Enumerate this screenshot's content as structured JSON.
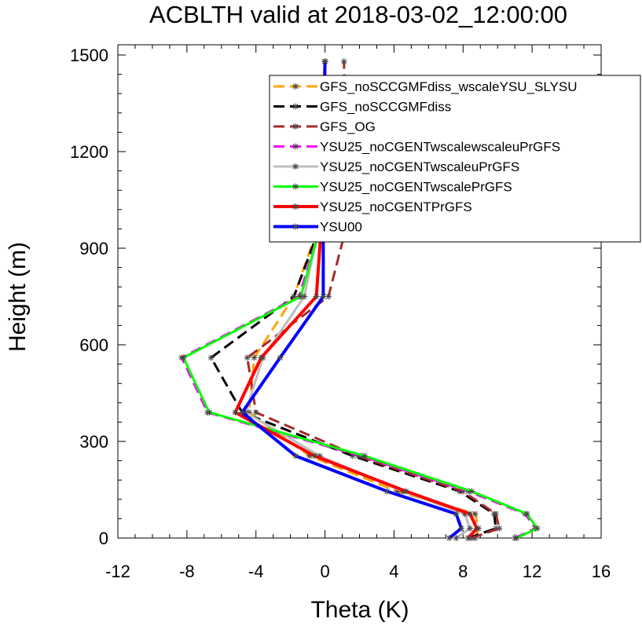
{
  "chart_data": {
    "type": "line",
    "title": "ACBLTH valid at 2018-03-02_12:00:00",
    "xlabel": "Theta (K)",
    "ylabel": "Height (m)",
    "xlim": [
      -12,
      16
    ],
    "ylim": [
      0,
      1500
    ],
    "x_ticks": [
      "-12",
      "-8",
      "-4",
      "0",
      "4",
      "8",
      "12",
      "16"
    ],
    "y_ticks": [
      "0",
      "300",
      "600",
      "900",
      "1200",
      "1500"
    ],
    "grid": false,
    "legend_position": "top-right",
    "series": [
      {
        "name": "GFS_noSCCGMFdiss_wscaleYSU_SLYSU",
        "color": "#ffa500",
        "dash": "long",
        "width": 3,
        "points": [
          [
            8.7,
            0
          ],
          [
            8.9,
            30
          ],
          [
            8.7,
            75
          ],
          [
            4.2,
            145
          ],
          [
            -0.9,
            255
          ],
          [
            -4.4,
            390
          ],
          [
            -4.1,
            560
          ],
          [
            -1.8,
            750
          ],
          [
            -0.3,
            980
          ],
          [
            -0.1,
            1200
          ],
          [
            0.0,
            1480
          ]
        ]
      },
      {
        "name": "GFS_noSCCGMFdiss",
        "color": "#000000",
        "dash": "long",
        "width": 3,
        "points": [
          [
            8.3,
            0
          ],
          [
            9.9,
            30
          ],
          [
            9.8,
            75
          ],
          [
            7.8,
            145
          ],
          [
            1.6,
            255
          ],
          [
            -4.8,
            390
          ],
          [
            -6.6,
            560
          ],
          [
            -1.8,
            750
          ],
          [
            -0.2,
            980
          ],
          [
            -0.1,
            1200
          ],
          [
            0.0,
            1480
          ]
        ]
      },
      {
        "name": "GFS_OG",
        "color": "#a52a2a",
        "dash": "long",
        "width": 3,
        "points": [
          [
            8.5,
            0
          ],
          [
            10.1,
            30
          ],
          [
            9.9,
            75
          ],
          [
            8.0,
            145
          ],
          [
            1.9,
            255
          ],
          [
            -4.0,
            390
          ],
          [
            -4.5,
            560
          ],
          [
            0.2,
            750
          ],
          [
            1.3,
            980
          ],
          [
            1.2,
            1200
          ],
          [
            1.1,
            1480
          ]
        ]
      },
      {
        "name": "YSU25_noCGENTwscalewscaleuPrGFS",
        "color": "#ff00ff",
        "dash": "long",
        "width": 3,
        "points": [
          [
            11.0,
            0
          ],
          [
            12.2,
            30
          ],
          [
            11.6,
            75
          ],
          [
            8.3,
            145
          ],
          [
            2.1,
            255
          ],
          [
            -6.8,
            390
          ],
          [
            -8.3,
            560
          ],
          [
            -1.5,
            750
          ],
          [
            -0.2,
            980
          ],
          [
            -0.1,
            1200
          ],
          [
            0.0,
            1480
          ]
        ]
      },
      {
        "name": "YSU25_noCGENTwscaleuPrGFS",
        "color": "#bebebe",
        "dash": "solid",
        "width": 3,
        "points": [
          [
            7.6,
            0
          ],
          [
            8.4,
            30
          ],
          [
            8.1,
            75
          ],
          [
            4.5,
            145
          ],
          [
            -0.3,
            255
          ],
          [
            -4.6,
            390
          ],
          [
            -3.6,
            560
          ],
          [
            -1.2,
            750
          ],
          [
            -0.3,
            980
          ],
          [
            -0.1,
            1200
          ],
          [
            0.0,
            1480
          ]
        ]
      },
      {
        "name": "YSU25_noCGENTwscalePrGFS",
        "color": "#00ff00",
        "dash": "solid",
        "width": 3,
        "points": [
          [
            11.1,
            0
          ],
          [
            12.3,
            30
          ],
          [
            11.7,
            75
          ],
          [
            8.5,
            145
          ],
          [
            2.3,
            255
          ],
          [
            -6.7,
            390
          ],
          [
            -8.2,
            560
          ],
          [
            -1.4,
            750
          ],
          [
            -0.2,
            980
          ],
          [
            -0.1,
            1200
          ],
          [
            0.0,
            1480
          ]
        ]
      },
      {
        "name": "YSU25_noCGENTPrGFS",
        "color": "#ff0000",
        "dash": "solid",
        "width": 4,
        "points": [
          [
            8.3,
            0
          ],
          [
            8.8,
            30
          ],
          [
            8.4,
            75
          ],
          [
            4.7,
            145
          ],
          [
            -0.6,
            255
          ],
          [
            -5.2,
            390
          ],
          [
            -3.7,
            560
          ],
          [
            -0.5,
            750
          ],
          [
            -0.2,
            980
          ],
          [
            -0.1,
            1200
          ],
          [
            0.0,
            1480
          ]
        ]
      },
      {
        "name": "YSU00",
        "color": "#0000ff",
        "dash": "solid",
        "width": 4,
        "points": [
          [
            7.2,
            0
          ],
          [
            7.9,
            30
          ],
          [
            7.6,
            75
          ],
          [
            3.6,
            145
          ],
          [
            -1.7,
            255
          ],
          [
            -4.8,
            390
          ],
          [
            -2.6,
            560
          ],
          [
            -0.1,
            750
          ],
          [
            -0.1,
            980
          ],
          [
            -0.1,
            1200
          ],
          [
            0.0,
            1480
          ]
        ]
      }
    ]
  }
}
